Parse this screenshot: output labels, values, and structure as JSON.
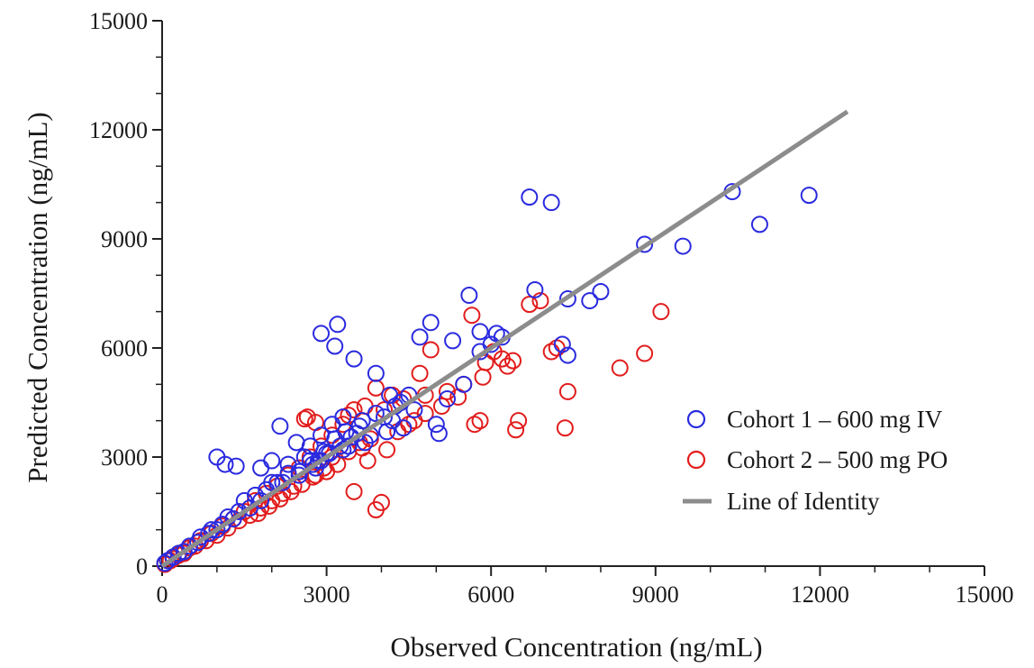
{
  "chart_data": {
    "type": "scatter",
    "xlabel": "Observed Concentration (ng/mL)",
    "ylabel": "Predicted Concentration (ng/mL)",
    "xlim": [
      0,
      15000
    ],
    "ylim": [
      0,
      15000
    ],
    "xticks": [
      "0",
      "3000",
      "6000",
      "9000",
      "12000",
      "15000"
    ],
    "yticks": [
      "0",
      "3000",
      "6000",
      "9000",
      "12000",
      "15000"
    ],
    "grid": false,
    "legend_position": "right",
    "identity_line": {
      "name": "Line of Identity",
      "from": [
        0,
        0
      ],
      "to": [
        12500,
        12500
      ],
      "color": "#8c8c8c"
    },
    "series": [
      {
        "name": "Cohort 1 – 600 mg IV",
        "color": "#2a2adf",
        "x": [
          6700,
          7100,
          10400,
          11800,
          10900,
          8800,
          9500,
          5600,
          6800,
          7400,
          7800,
          8000,
          6100,
          5800,
          5300,
          6200,
          7300,
          7400,
          4900,
          4700,
          2900,
          3200,
          3150,
          3500,
          3900,
          1000,
          1150,
          1350,
          5000,
          5050,
          2150,
          2450,
          3100,
          3300,
          3600,
          4100,
          4400,
          2700,
          2900,
          3350,
          3650,
          4250,
          1800,
          2000,
          2300,
          2600,
          3000,
          3400,
          3800,
          4200,
          4600,
          5200,
          5500,
          2100,
          2500,
          2900,
          3300,
          3700,
          1500,
          1700,
          1900,
          2200,
          2500,
          2800,
          1200,
          1400,
          1600,
          1800,
          900,
          1100,
          1300,
          700,
          850,
          1000,
          500,
          650,
          300,
          400,
          200,
          100,
          50,
          2000,
          2300,
          2700,
          3900,
          4500,
          5800,
          6000,
          3050,
          3150,
          3250,
          3450,
          3550,
          2850,
          2950,
          2750,
          4050,
          4350,
          4150
        ],
        "y": [
          10150,
          10000,
          10300,
          10200,
          9400,
          8850,
          8800,
          7450,
          7600,
          7350,
          7300,
          7550,
          6400,
          6450,
          6200,
          6300,
          6100,
          5800,
          6700,
          6300,
          6400,
          6650,
          6050,
          5700,
          5300,
          3000,
          2800,
          2750,
          3900,
          3650,
          3850,
          3400,
          3900,
          4100,
          3850,
          3700,
          3800,
          3300,
          3600,
          3700,
          4000,
          4400,
          2700,
          2900,
          2800,
          3000,
          3100,
          3300,
          3600,
          4000,
          4300,
          4600,
          5000,
          2300,
          2600,
          2900,
          3200,
          3400,
          1800,
          1950,
          2100,
          2300,
          2500,
          2700,
          1350,
          1500,
          1600,
          1800,
          1000,
          1150,
          1300,
          800,
          900,
          1000,
          550,
          650,
          350,
          400,
          250,
          150,
          80,
          2300,
          2550,
          2900,
          4200,
          4700,
          5900,
          6100,
          3100,
          3500,
          3300,
          3550,
          3650,
          2900,
          3150,
          2800,
          4100,
          4500,
          4700
        ]
      },
      {
        "name": "Cohort 2 – 500 mg PO",
        "color": "#e21c1c",
        "x": [
          9100,
          8800,
          8350,
          7400,
          7350,
          7100,
          7200,
          6900,
          6700,
          6500,
          6450,
          6200,
          5900,
          5800,
          5700,
          5650,
          6050,
          5850,
          5500,
          5200,
          4900,
          4800,
          4700,
          4400,
          4200,
          4050,
          3900,
          3700,
          3500,
          3400,
          3300,
          3100,
          2900,
          2700,
          2500,
          2300,
          2100,
          1900,
          1700,
          1500,
          1300,
          1100,
          900,
          700,
          500,
          300,
          150,
          50,
          4000,
          3900,
          3500,
          2600,
          2650,
          2800,
          4300,
          4600,
          3650,
          3800,
          3200,
          3000,
          2800,
          2400,
          2200,
          2000,
          1800,
          1600,
          1400,
          1200,
          1000,
          800,
          600,
          400,
          200,
          3600,
          3400,
          3100,
          2950,
          2750,
          2550,
          2350,
          2150,
          1950,
          1750,
          4500,
          4800,
          5100,
          5400,
          6300,
          6400,
          4100,
          3750
        ],
        "y": [
          7000,
          5850,
          5450,
          4800,
          3800,
          5900,
          6000,
          7300,
          7200,
          4000,
          3750,
          5700,
          5600,
          4000,
          3900,
          6900,
          5900,
          5200,
          5000,
          4800,
          5950,
          4700,
          5300,
          4600,
          4700,
          4300,
          4900,
          4400,
          4300,
          4150,
          3900,
          3600,
          3300,
          3000,
          2700,
          2500,
          2200,
          2000,
          1800,
          1500,
          1300,
          1100,
          900,
          700,
          500,
          300,
          150,
          50,
          1750,
          1550,
          2050,
          4050,
          4100,
          3950,
          3700,
          4000,
          3250,
          3500,
          2800,
          2600,
          2500,
          2200,
          2000,
          1800,
          1600,
          1400,
          1250,
          1050,
          850,
          700,
          550,
          350,
          200,
          3400,
          3150,
          3000,
          2700,
          2450,
          2250,
          2050,
          1850,
          1650,
          1450,
          3900,
          4200,
          4400,
          4650,
          5500,
          5650,
          3200,
          2900
        ]
      }
    ]
  }
}
